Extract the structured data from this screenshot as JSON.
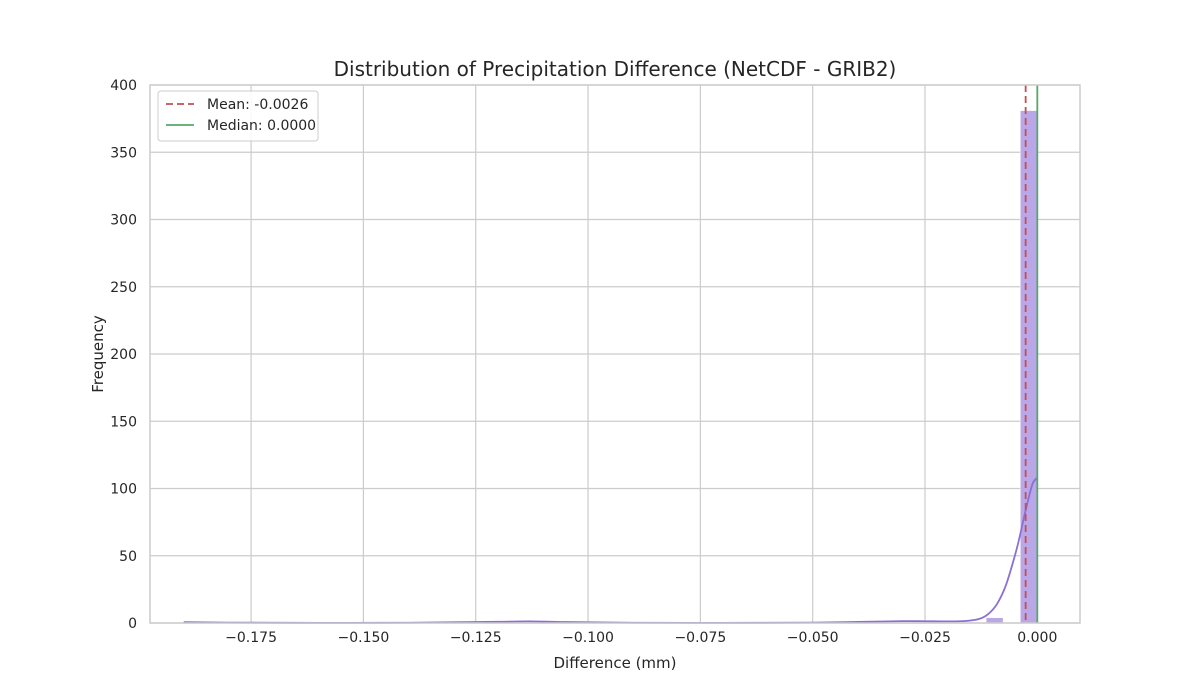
{
  "chart_data": {
    "type": "histogram",
    "title": "Distribution of Precipitation Difference (NetCDF - GRIB2)",
    "xlabel": "Difference (mm)",
    "ylabel": "Frequency",
    "xlim": [
      -0.1975,
      0.0095
    ],
    "ylim": [
      0,
      400
    ],
    "x_ticks": [
      -0.175,
      -0.15,
      -0.125,
      -0.1,
      -0.075,
      -0.05,
      -0.025,
      0.0
    ],
    "x_tick_labels": [
      "−0.175",
      "−0.150",
      "−0.125",
      "−0.100",
      "−0.075",
      "−0.050",
      "−0.025",
      "0.000"
    ],
    "y_ticks": [
      0,
      50,
      100,
      150,
      200,
      250,
      300,
      350,
      400
    ],
    "y_tick_labels": [
      "0",
      "50",
      "100",
      "150",
      "200",
      "250",
      "300",
      "350",
      "400"
    ],
    "grid": true,
    "bar_color": "#b9a7e8",
    "kde_color": "#8a6fd6",
    "histogram": [
      {
        "x0": -0.19,
        "x1": -0.1862,
        "count": 0
      },
      {
        "x0": -0.0114,
        "x1": -0.0076,
        "count": 4
      },
      {
        "x0": -0.0038,
        "x1": 0.0,
        "count": 381
      }
    ],
    "kde": {
      "x": [
        -0.19,
        -0.18,
        -0.16,
        -0.14,
        -0.12,
        -0.113,
        -0.105,
        -0.09,
        -0.07,
        -0.05,
        -0.04,
        -0.03,
        -0.025,
        -0.02,
        -0.016,
        -0.013,
        -0.011,
        -0.009,
        -0.007,
        -0.005,
        -0.004,
        -0.003,
        -0.002,
        -0.001,
        0.0
      ],
      "y": [
        0.6,
        0.3,
        0.1,
        0.2,
        0.9,
        1.2,
        0.7,
        0.2,
        0.1,
        0.3,
        0.8,
        1.4,
        1.3,
        1.2,
        1.5,
        3.0,
        6.5,
        14,
        28,
        50,
        63,
        78,
        92,
        104,
        108
      ]
    },
    "reference_lines": [
      {
        "name": "Mean: -0.0026",
        "value": -0.0026,
        "color": "#c44e52",
        "style": "dashed"
      },
      {
        "name": "Median: 0.0000",
        "value": 0.0,
        "color": "#55a868",
        "style": "solid"
      }
    ],
    "legend_position": "top-left"
  }
}
